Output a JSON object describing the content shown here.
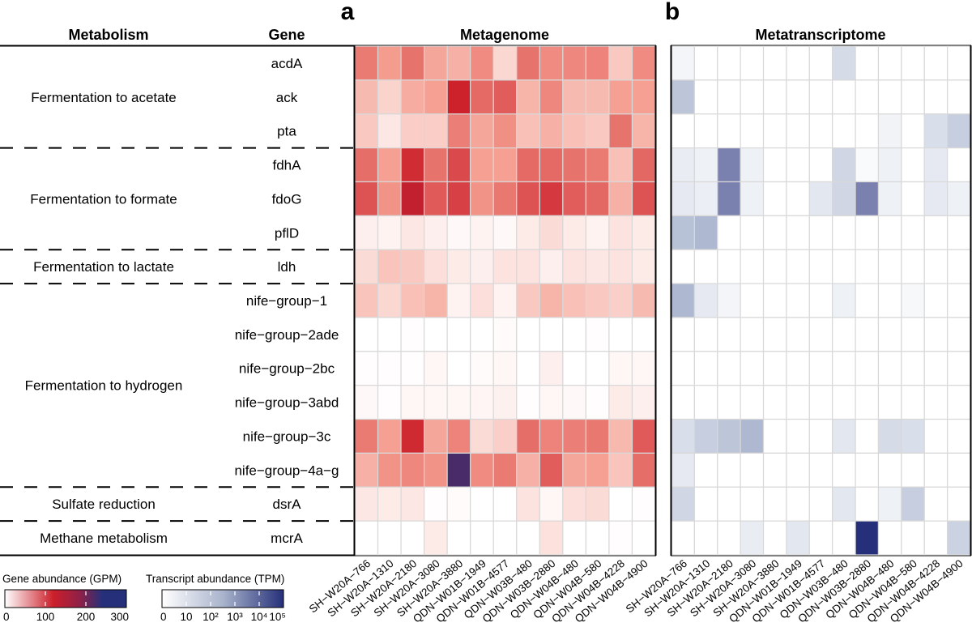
{
  "chart_data": [
    {
      "type": "heatmap",
      "panel": "a",
      "title": "Metagenome",
      "value_label": "Gene abundance (GPM)",
      "color_range": [
        0,
        300
      ],
      "colorscale": [
        "#ffffff",
        "#cc1f2a",
        "#26307a"
      ],
      "x": [
        "SH-W20A-766",
        "SH-W20A-1310",
        "SH-W20A-2180",
        "SH-W20A-3080",
        "SH-W20A-3880",
        "QDN-W01B-1949",
        "QDN-W01B-4577",
        "QDN-W03B-480",
        "QDN-W03B-2880",
        "QDN-W04B-480",
        "QDN-W04B-580",
        "QDN-W04B-4228",
        "QDN-W04B-4900"
      ],
      "y": [
        "acdA",
        "ack",
        "pta",
        "fdhA",
        "fdoG",
        "pflD",
        "ldh",
        "nife-group-1",
        "nife-group-2ade",
        "nife-group-2bc",
        "nife-group-3abd",
        "nife-group-3c",
        "nife-group-4a-g",
        "dsrA",
        "mcrA"
      ],
      "values": [
        [
          70,
          50,
          75,
          45,
          40,
          60,
          20,
          75,
          60,
          62,
          65,
          28,
          60
        ],
        [
          35,
          22,
          42,
          48,
          125,
          80,
          88,
          38,
          62,
          35,
          35,
          48,
          48
        ],
        [
          28,
          12,
          25,
          25,
          68,
          45,
          58,
          32,
          40,
          32,
          28,
          75,
          38
        ],
        [
          78,
          48,
          118,
          75,
          100,
          48,
          48,
          80,
          80,
          75,
          70,
          32,
          82
        ],
        [
          95,
          55,
          135,
          90,
          105,
          55,
          72,
          95,
          110,
          88,
          82,
          40,
          95
        ],
        [
          8,
          6,
          12,
          8,
          3,
          6,
          3,
          10,
          18,
          10,
          6,
          14,
          10
        ],
        [
          18,
          30,
          28,
          16,
          10,
          8,
          14,
          14,
          8,
          14,
          12,
          14,
          10
        ],
        [
          30,
          20,
          32,
          38,
          6,
          16,
          6,
          28,
          38,
          32,
          28,
          24,
          35
        ],
        [
          0,
          0,
          1,
          0,
          0,
          0,
          2,
          0,
          0,
          0,
          1,
          0,
          0
        ],
        [
          1,
          1,
          1,
          4,
          0,
          2,
          4,
          0,
          8,
          0,
          0,
          4,
          4
        ],
        [
          3,
          1,
          4,
          4,
          4,
          5,
          7,
          1,
          4,
          3,
          1,
          10,
          8
        ],
        [
          70,
          48,
          120,
          45,
          65,
          18,
          24,
          78,
          65,
          68,
          72,
          36,
          90
        ],
        [
          40,
          55,
          62,
          55,
          220,
          60,
          70,
          40,
          88,
          45,
          48,
          30,
          78
        ],
        [
          12,
          10,
          12,
          1,
          2,
          0,
          0,
          14,
          4,
          16,
          18,
          0,
          1
        ],
        [
          0,
          0,
          0,
          10,
          0,
          0,
          0,
          0,
          15,
          0,
          0,
          1,
          0
        ]
      ]
    },
    {
      "type": "heatmap",
      "panel": "b",
      "title": "Metatranscriptome",
      "value_label": "Transcript abundance (TPM)",
      "scale": "log",
      "color_ticks": [
        "0",
        "10",
        "10²",
        "10³",
        "10⁴",
        "10⁵"
      ],
      "colorscale": [
        "#ffffff",
        "#26307a"
      ],
      "x": [
        "SH-W20A-766",
        "SH-W20A-1310",
        "SH-W20A-2180",
        "SH-W20A-3080",
        "SH-W20A-3880",
        "QDN-W01B-1949",
        "QDN-W01B-4577",
        "QDN-W03B-480",
        "QDN-W03B-2880",
        "QDN-W04B-480",
        "QDN-W04B-580",
        "QDN-W04B-4228",
        "QDN-W04B-4900"
      ],
      "y": [
        "acdA",
        "ack",
        "pta",
        "fdhA",
        "fdoG",
        "pflD",
        "ldh",
        "nife-group-1",
        "nife-group-2ade",
        "nife-group-2bc",
        "nife-group-3abd",
        "nife-group-3c",
        "nife-group-4a-g",
        "dsrA",
        "mcrA"
      ],
      "values_log10": [
        [
          0.4,
          0,
          0,
          0,
          0,
          0,
          0,
          1.3,
          0,
          0,
          0,
          0,
          0
        ],
        [
          1.8,
          0,
          0,
          0,
          0,
          0,
          0,
          0,
          0,
          0,
          0,
          0,
          0
        ],
        [
          0,
          0,
          0,
          0,
          0,
          0,
          0,
          0,
          0,
          0.5,
          0,
          1.2,
          1.6
        ],
        [
          0.8,
          0.6,
          3.3,
          0.6,
          0,
          0,
          0,
          1.4,
          0.2,
          0.6,
          0,
          0.9,
          0
        ],
        [
          0.9,
          0.7,
          3.3,
          0.6,
          0,
          0,
          1.0,
          1.4,
          3.3,
          0.6,
          0,
          0.9,
          0.6
        ],
        [
          1.9,
          2.1,
          0,
          0,
          0,
          0,
          0,
          0,
          0,
          0,
          0,
          0,
          0
        ],
        [
          0,
          0,
          0,
          0,
          0,
          0,
          0,
          0,
          0,
          0,
          0,
          0,
          0
        ],
        [
          2.1,
          0.9,
          0.4,
          0,
          0,
          0,
          0,
          0.6,
          0,
          0,
          0.3,
          0,
          0
        ],
        [
          0,
          0,
          0,
          0,
          0,
          0,
          0,
          0,
          0,
          0,
          0,
          0,
          0
        ],
        [
          0,
          0,
          0,
          0,
          0,
          0,
          0,
          0,
          0,
          0,
          0,
          0,
          0
        ],
        [
          0,
          0,
          0,
          0,
          0,
          0,
          0,
          0,
          0,
          0,
          0,
          0,
          0
        ],
        [
          1.2,
          1.6,
          1.8,
          2.1,
          0,
          0,
          0,
          1.0,
          0,
          1.3,
          1.2,
          0,
          0
        ],
        [
          0.9,
          0,
          0,
          0,
          0,
          0,
          0,
          0,
          0,
          0,
          0,
          0,
          0
        ],
        [
          1.4,
          0,
          0,
          0,
          0,
          0,
          0,
          1.0,
          0,
          0.6,
          1.6,
          0,
          0
        ],
        [
          0,
          0,
          0,
          0.8,
          0,
          1.0,
          0,
          0,
          5.0,
          0,
          0,
          0,
          1.5
        ]
      ]
    }
  ],
  "header": {
    "metabolism": "Metabolism",
    "gene": "Gene",
    "panel_a_letter": "a",
    "panel_b_letter": "b",
    "panel_a_title": "Metagenome",
    "panel_b_title": "Metatranscriptome"
  },
  "metabolism_groups": [
    {
      "label": "Fermentation to acetate",
      "start": 0,
      "count": 3
    },
    {
      "label": "Fermentation to formate",
      "start": 3,
      "count": 3
    },
    {
      "label": "Fermentation to lactate",
      "start": 6,
      "count": 1
    },
    {
      "label": "Fermentation to hydrogen",
      "start": 7,
      "count": 6
    },
    {
      "label": "Sulfate reduction",
      "start": 13,
      "count": 1
    },
    {
      "label": "Methane metabolism",
      "start": 14,
      "count": 1
    }
  ],
  "legend": {
    "gene": {
      "title": "Gene abundance (GPM)",
      "ticks": [
        "0",
        "100",
        "200",
        "300"
      ]
    },
    "transcript": {
      "title": "Transcript abundance (TPM)",
      "ticks": [
        "0",
        "10",
        "10²",
        "10³",
        "10⁴",
        "10⁵"
      ]
    }
  }
}
